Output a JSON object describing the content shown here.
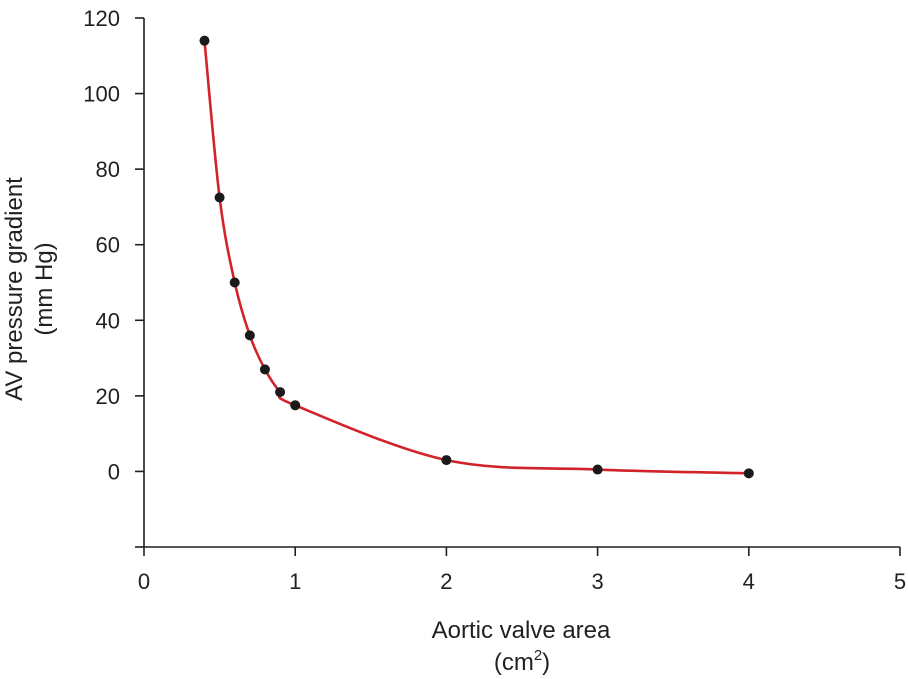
{
  "chart_data": {
    "type": "line",
    "title": "",
    "xlabel": "Aortic valve area",
    "xlabel_unit_prefix": "(cm",
    "xlabel_unit_exp": "2",
    "xlabel_unit_suffix": ")",
    "ylabel_line1": "AV pressure gradient",
    "ylabel_line2": "(mm Hg)",
    "xlim": [
      0,
      5
    ],
    "ylim": [
      -20,
      120
    ],
    "x_ticks": [
      0,
      1,
      2,
      3,
      4,
      5
    ],
    "y_ticks": [
      0,
      20,
      40,
      60,
      80,
      100,
      120
    ],
    "grid": false,
    "series": [
      {
        "color": "#d2232a",
        "marker_color": "#1a1a1a",
        "x": [
          0.4,
          0.5,
          0.6,
          0.7,
          0.8,
          0.9,
          1.0,
          2.0,
          3.0,
          4.0
        ],
        "y": [
          114,
          72.5,
          50,
          36,
          27,
          21,
          17.5,
          3,
          0.5,
          -0.5
        ]
      }
    ]
  }
}
